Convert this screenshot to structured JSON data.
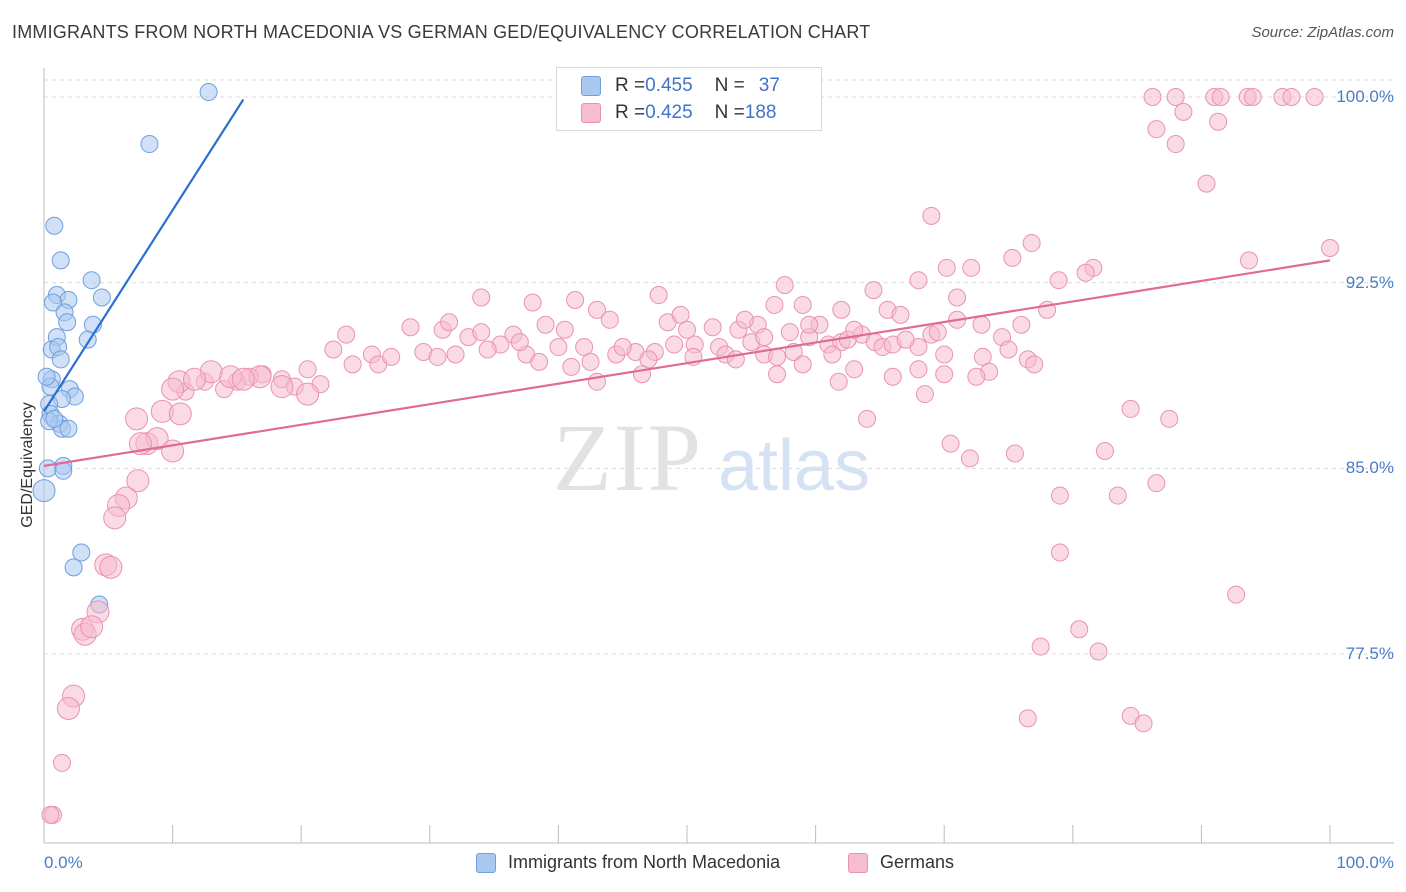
{
  "title": "IMMIGRANTS FROM NORTH MACEDONIA VS GERMAN GED/EQUIVALENCY CORRELATION CHART",
  "source": "Source: ZipAtlas.com",
  "watermark": {
    "zip": "ZIP",
    "atlas": "atlas"
  },
  "legend_top": {
    "rows": [
      {
        "r_label": "R = ",
        "r_value": "0.455",
        "n_label": "N = ",
        "n_value": "37",
        "color": "#a9c8f0",
        "border": "#6f9fde"
      },
      {
        "r_label": "R = ",
        "r_value": "0.425",
        "n_label": "N = ",
        "n_value": "188",
        "color": "#f6bcd0",
        "border": "#e993b1"
      }
    ]
  },
  "legend_bottom": [
    {
      "label": "Immigrants from North Macedonia",
      "color": "#a9c8f0",
      "border": "#6f9fde"
    },
    {
      "label": "Germans",
      "color": "#f6bcd0",
      "border": "#e993b1"
    }
  ],
  "chart_data": {
    "type": "scatter",
    "title": "IMMIGRANTS FROM NORTH MACEDONIA VS GERMAN GED/EQUIVALENCY CORRELATION CHART",
    "xlabel": "",
    "ylabel": "GED/Equivalency",
    "xlim": [
      0,
      100
    ],
    "ylim": [
      70.5,
      101.0
    ],
    "x_tick_labels": [
      "0.0%",
      "100.0%"
    ],
    "y_ticks": [
      77.5,
      85.0,
      92.5,
      100.0
    ],
    "y_tick_labels": [
      "77.5%",
      "85.0%",
      "92.5%",
      "100.0%"
    ],
    "grid": true,
    "legend_placement": "top-center",
    "series": [
      {
        "name": "Immigrants from North Macedonia",
        "color": "#a9c8f0",
        "stroke": "#6f9fde",
        "line_color": "#2c6fd0",
        "trend": {
          "x0": 0.0,
          "y0": 87.3,
          "x1": 15.5,
          "y1": 99.9
        },
        "points": [
          [
            12.8,
            100.2,
            1
          ],
          [
            8.2,
            98.1,
            1
          ],
          [
            0.8,
            94.8,
            1
          ],
          [
            1.3,
            93.4,
            1
          ],
          [
            3.7,
            92.6,
            1
          ],
          [
            4.5,
            91.9,
            1
          ],
          [
            1.0,
            92.0,
            1
          ],
          [
            1.9,
            91.8,
            1
          ],
          [
            0.7,
            91.7,
            1
          ],
          [
            1.6,
            91.3,
            1
          ],
          [
            1.8,
            90.9,
            1
          ],
          [
            3.8,
            90.8,
            1
          ],
          [
            1.0,
            90.3,
            1
          ],
          [
            3.4,
            90.2,
            1
          ],
          [
            0.6,
            89.8,
            1
          ],
          [
            1.1,
            89.9,
            1
          ],
          [
            1.3,
            89.4,
            1
          ],
          [
            0.6,
            88.6,
            1
          ],
          [
            0.5,
            88.3,
            1
          ],
          [
            2.0,
            88.2,
            1
          ],
          [
            2.4,
            87.9,
            1
          ],
          [
            1.4,
            87.8,
            1
          ],
          [
            0.4,
            87.6,
            1
          ],
          [
            0.5,
            87.2,
            1
          ],
          [
            1.2,
            86.8,
            1
          ],
          [
            1.4,
            86.6,
            1
          ],
          [
            1.9,
            86.6,
            1
          ],
          [
            0.3,
            85.0,
            1
          ],
          [
            1.5,
            85.1,
            1
          ],
          [
            1.5,
            84.9,
            1
          ],
          [
            0.0,
            84.1,
            2
          ],
          [
            2.9,
            81.6,
            1
          ],
          [
            2.3,
            81.0,
            1
          ],
          [
            4.3,
            79.5,
            1
          ],
          [
            0.2,
            88.7,
            1
          ],
          [
            0.4,
            86.9,
            1
          ],
          [
            0.8,
            87.0,
            1
          ]
        ]
      },
      {
        "name": "Germans",
        "color": "#f6bcd0",
        "stroke": "#e993b1",
        "line_color": "#e06a98",
        "trend": {
          "x0": 0.0,
          "y0": 85.1,
          "x1": 100.0,
          "y1": 93.4
        },
        "points": [
          [
            86.2,
            100.0,
            1
          ],
          [
            88.0,
            100.0,
            1
          ],
          [
            91.0,
            100.0,
            1
          ],
          [
            91.5,
            100.0,
            1
          ],
          [
            93.6,
            100.0,
            1
          ],
          [
            94.0,
            100.0,
            1
          ],
          [
            96.3,
            100.0,
            1
          ],
          [
            97.0,
            100.0,
            1
          ],
          [
            98.8,
            100.0,
            1
          ],
          [
            88.6,
            99.4,
            1
          ],
          [
            91.3,
            99.0,
            1
          ],
          [
            86.5,
            98.7,
            1
          ],
          [
            88.0,
            98.1,
            1
          ],
          [
            90.4,
            96.5,
            1
          ],
          [
            69.0,
            95.2,
            1
          ],
          [
            100.0,
            93.9,
            1
          ],
          [
            93.7,
            93.4,
            1
          ],
          [
            76.8,
            94.1,
            1
          ],
          [
            75.3,
            93.5,
            1
          ],
          [
            70.2,
            93.1,
            1
          ],
          [
            72.1,
            93.1,
            1
          ],
          [
            81.6,
            93.1,
            1
          ],
          [
            81.0,
            92.9,
            1
          ],
          [
            78.9,
            92.6,
            1
          ],
          [
            68.0,
            92.6,
            1
          ],
          [
            64.5,
            92.2,
            1
          ],
          [
            71.0,
            91.9,
            1
          ],
          [
            57.6,
            92.4,
            1
          ],
          [
            56.8,
            91.6,
            1
          ],
          [
            59.0,
            91.6,
            1
          ],
          [
            65.6,
            91.4,
            1
          ],
          [
            66.6,
            91.2,
            1
          ],
          [
            62.0,
            91.4,
            1
          ],
          [
            47.8,
            92.0,
            1
          ],
          [
            41.3,
            91.8,
            1
          ],
          [
            38.0,
            91.7,
            1
          ],
          [
            34.0,
            91.9,
            1
          ],
          [
            43.0,
            91.4,
            1
          ],
          [
            44.0,
            91.0,
            1
          ],
          [
            48.5,
            90.9,
            1
          ],
          [
            55.5,
            90.8,
            1
          ],
          [
            60.3,
            90.8,
            1
          ],
          [
            72.9,
            90.8,
            1
          ],
          [
            76.0,
            90.8,
            1
          ],
          [
            52.0,
            90.7,
            1
          ],
          [
            54.0,
            90.6,
            1
          ],
          [
            58.0,
            90.5,
            1
          ],
          [
            59.5,
            90.3,
            1
          ],
          [
            69.0,
            90.4,
            1
          ],
          [
            69.5,
            90.5,
            1
          ],
          [
            55.0,
            90.1,
            1
          ],
          [
            61.0,
            90.0,
            1
          ],
          [
            62.0,
            90.1,
            1
          ],
          [
            63.6,
            90.4,
            1
          ],
          [
            49.0,
            90.0,
            1
          ],
          [
            50.6,
            90.0,
            1
          ],
          [
            52.5,
            89.9,
            1
          ],
          [
            46.0,
            89.7,
            1
          ],
          [
            47.5,
            89.7,
            1
          ],
          [
            53.0,
            89.6,
            1
          ],
          [
            56.0,
            89.6,
            1
          ],
          [
            57.0,
            89.5,
            1
          ],
          [
            58.3,
            89.7,
            1
          ],
          [
            61.3,
            89.6,
            1
          ],
          [
            64.6,
            90.1,
            1
          ],
          [
            65.2,
            89.9,
            1
          ],
          [
            68.0,
            89.9,
            1
          ],
          [
            70.0,
            89.6,
            1
          ],
          [
            73.0,
            89.5,
            1
          ],
          [
            76.5,
            89.4,
            1
          ],
          [
            77.0,
            89.2,
            1
          ],
          [
            73.5,
            88.9,
            1
          ],
          [
            39.0,
            90.8,
            1
          ],
          [
            40.5,
            90.6,
            1
          ],
          [
            36.5,
            90.4,
            1
          ],
          [
            31.0,
            90.6,
            1
          ],
          [
            33.0,
            90.3,
            1
          ],
          [
            35.5,
            90.0,
            1
          ],
          [
            28.5,
            90.7,
            1
          ],
          [
            23.5,
            90.4,
            1
          ],
          [
            25.5,
            89.6,
            1
          ],
          [
            26.0,
            89.2,
            1
          ],
          [
            27.0,
            89.5,
            1
          ],
          [
            29.5,
            89.7,
            1
          ],
          [
            32.0,
            89.6,
            1
          ],
          [
            34.5,
            89.8,
            1
          ],
          [
            37.5,
            89.6,
            1
          ],
          [
            40.0,
            89.9,
            1
          ],
          [
            42.0,
            89.9,
            1
          ],
          [
            44.5,
            89.6,
            1
          ],
          [
            41.0,
            89.1,
            1
          ],
          [
            42.5,
            89.3,
            1
          ],
          [
            47.0,
            89.4,
            1
          ],
          [
            50.5,
            89.5,
            1
          ],
          [
            22.5,
            89.8,
            1
          ],
          [
            20.5,
            89.0,
            1
          ],
          [
            18.5,
            88.6,
            1
          ],
          [
            17.0,
            88.8,
            1
          ],
          [
            16.0,
            88.7,
            1
          ],
          [
            19.5,
            88.3,
            1
          ],
          [
            21.5,
            88.4,
            1
          ],
          [
            15.0,
            88.5,
            1
          ],
          [
            14.0,
            88.2,
            1
          ],
          [
            12.5,
            88.5,
            1
          ],
          [
            11.0,
            88.1,
            1
          ],
          [
            10.5,
            88.5,
            2
          ],
          [
            14.5,
            88.7,
            2
          ],
          [
            16.8,
            88.7,
            2
          ],
          [
            13.0,
            88.9,
            2
          ],
          [
            18.5,
            88.3,
            2
          ],
          [
            20.5,
            88.0,
            2
          ],
          [
            10.0,
            88.2,
            2
          ],
          [
            15.5,
            88.6,
            2
          ],
          [
            11.7,
            88.6,
            2
          ],
          [
            7.2,
            87.0,
            2
          ],
          [
            9.2,
            87.3,
            2
          ],
          [
            10.6,
            87.2,
            2
          ],
          [
            8.0,
            86.0,
            2
          ],
          [
            8.8,
            86.2,
            2
          ],
          [
            10.0,
            85.7,
            2
          ],
          [
            7.5,
            86.0,
            2
          ],
          [
            7.3,
            84.5,
            2
          ],
          [
            6.4,
            83.8,
            2
          ],
          [
            5.8,
            83.5,
            2
          ],
          [
            5.5,
            83.0,
            2
          ],
          [
            4.8,
            81.1,
            2
          ],
          [
            5.2,
            81.0,
            2
          ],
          [
            4.2,
            79.2,
            2
          ],
          [
            3.0,
            78.5,
            2
          ],
          [
            3.2,
            78.3,
            2
          ],
          [
            3.7,
            78.6,
            2
          ],
          [
            2.3,
            75.8,
            2
          ],
          [
            1.9,
            75.3,
            2
          ],
          [
            1.4,
            73.1,
            1
          ],
          [
            0.7,
            71.0,
            1
          ],
          [
            0.5,
            71.0,
            1
          ],
          [
            38.5,
            89.3,
            1
          ],
          [
            43.0,
            88.5,
            1
          ],
          [
            46.5,
            88.8,
            1
          ],
          [
            61.8,
            88.5,
            1
          ],
          [
            64.0,
            87.0,
            1
          ],
          [
            68.5,
            88.0,
            1
          ],
          [
            66.0,
            88.7,
            1
          ],
          [
            68.0,
            89.0,
            1
          ],
          [
            72.5,
            88.7,
            1
          ],
          [
            70.0,
            88.8,
            1
          ],
          [
            84.5,
            87.4,
            1
          ],
          [
            87.5,
            87.0,
            1
          ],
          [
            70.5,
            86.0,
            1
          ],
          [
            72.0,
            85.4,
            1
          ],
          [
            75.5,
            85.6,
            1
          ],
          [
            82.5,
            85.7,
            1
          ],
          [
            83.5,
            83.9,
            1
          ],
          [
            86.5,
            84.4,
            1
          ],
          [
            79.0,
            83.9,
            1
          ],
          [
            79.0,
            81.6,
            1
          ],
          [
            92.7,
            79.9,
            1
          ],
          [
            80.5,
            78.5,
            1
          ],
          [
            77.5,
            77.8,
            1
          ],
          [
            82.0,
            77.6,
            1
          ],
          [
            76.5,
            74.9,
            1
          ],
          [
            84.5,
            75.0,
            1
          ],
          [
            85.5,
            74.7,
            1
          ],
          [
            30.6,
            89.5,
            1
          ],
          [
            24.0,
            89.2,
            1
          ],
          [
            59.5,
            90.8,
            1
          ],
          [
            49.5,
            91.2,
            1
          ],
          [
            50.0,
            90.6,
            1
          ],
          [
            54.5,
            91.0,
            1
          ],
          [
            56.0,
            90.3,
            1
          ],
          [
            62.5,
            90.2,
            1
          ],
          [
            63.0,
            90.6,
            1
          ],
          [
            66.0,
            90.0,
            1
          ],
          [
            67.0,
            90.2,
            1
          ],
          [
            71.0,
            91.0,
            1
          ],
          [
            74.5,
            90.3,
            1
          ],
          [
            75.0,
            89.8,
            1
          ],
          [
            78.0,
            91.4,
            1
          ],
          [
            31.5,
            90.9,
            1
          ],
          [
            34.0,
            90.5,
            1
          ],
          [
            37.0,
            90.1,
            1
          ],
          [
            45.0,
            89.9,
            1
          ],
          [
            53.8,
            89.4,
            1
          ],
          [
            59.0,
            89.2,
            1
          ],
          [
            63.0,
            89.0,
            1
          ],
          [
            57.0,
            88.8,
            1
          ]
        ]
      }
    ]
  }
}
